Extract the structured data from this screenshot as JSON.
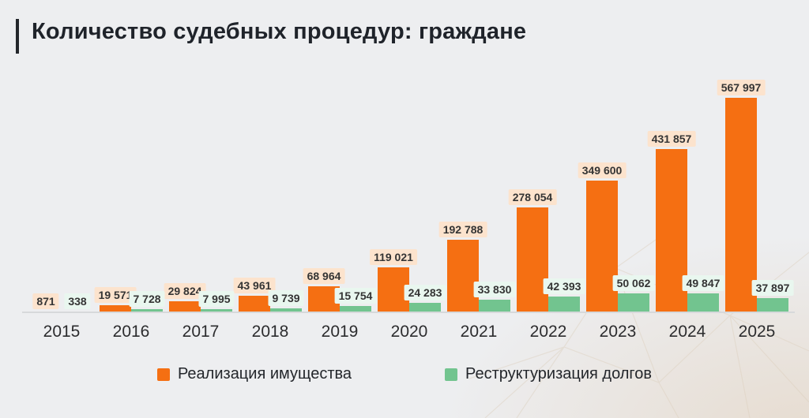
{
  "header": {
    "title": "Количество судебных процедур: граждане"
  },
  "colors": {
    "background": "#edeef0",
    "background_tint": "#e4d5c4",
    "title_text": "#1f232a",
    "title_accent": "#23262b",
    "axis_line": "#d7d9db",
    "value_label_text": "#343434",
    "watermark_line": "#dccfbd"
  },
  "chart_data": {
    "type": "bar",
    "title": "Количество судебных процедур: граждане",
    "xlabel": "",
    "ylabel": "",
    "categories": [
      "2015",
      "2016",
      "2017",
      "2018",
      "2019",
      "2020",
      "2021",
      "2022",
      "2023",
      "2024",
      "2025"
    ],
    "series": [
      {
        "key": "realizatsiya-imushchestva",
        "name": "Реализация имущества",
        "color": "#f56f12",
        "label_bg": "#fce3cd",
        "values": [
          871,
          19571,
          29824,
          43961,
          68964,
          119021,
          192788,
          278054,
          349600,
          431857,
          567997
        ],
        "value_labels": [
          "871",
          "19 571",
          "29 824",
          "43 961",
          "68 964",
          "119 021",
          "192 788",
          "278 054",
          "349 600",
          "431 857",
          "567 997"
        ]
      },
      {
        "key": "restrukturizatsiya-dolgov",
        "name": "Реструктуризация долгов",
        "color": "#72c48f",
        "label_bg": "#e9f7ef",
        "values": [
          338,
          7728,
          7995,
          9739,
          15754,
          24283,
          33830,
          42393,
          50062,
          49847,
          37897
        ],
        "value_labels": [
          "338",
          "7 728",
          "7 995",
          "9 739",
          "15 754",
          "24 283",
          "33 830",
          "42 393",
          "50 062",
          "49 847",
          "37 897"
        ]
      }
    ],
    "ylim": [
      0,
      600000
    ],
    "grid": false,
    "y_axis_visible": false,
    "legend_position": "bottom",
    "value_labels_visible": true,
    "thousands_separator": " "
  }
}
